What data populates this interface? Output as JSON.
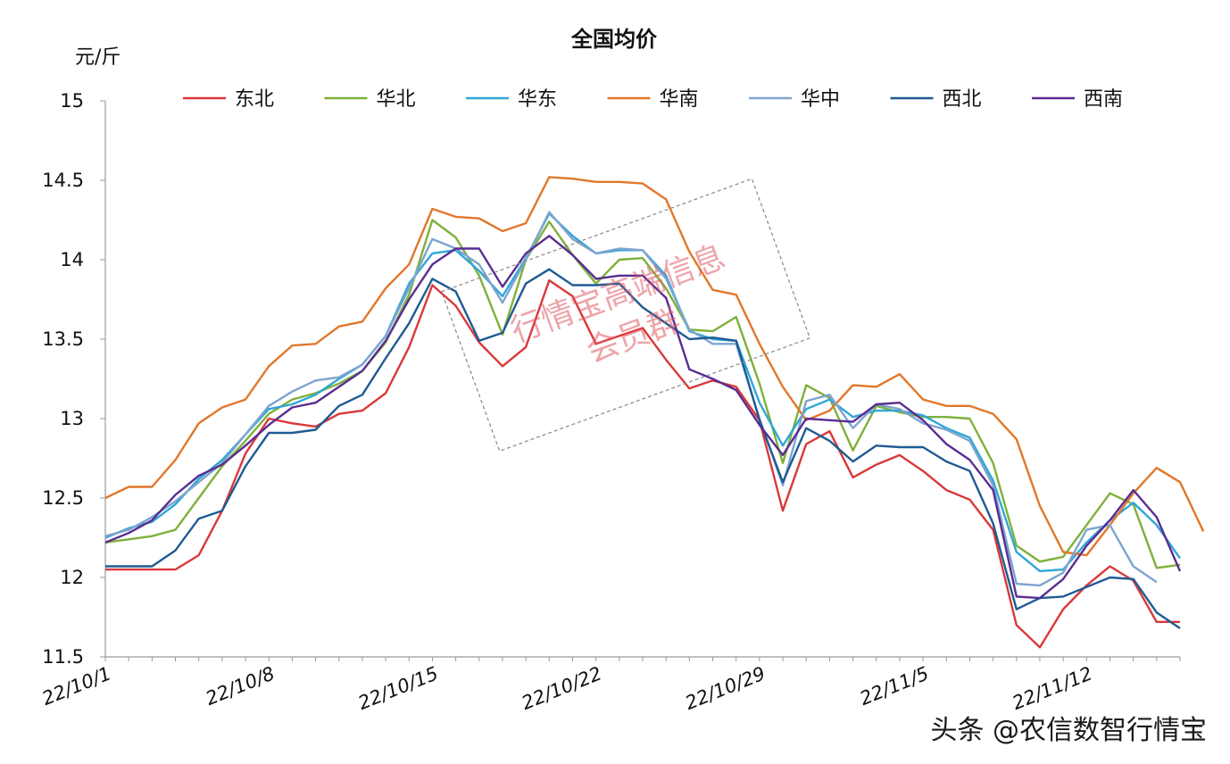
{
  "chart_data": {
    "type": "line",
    "title": "全国均价",
    "ylabel": "元/斤",
    "xlabel": "",
    "ylim": [
      11.5,
      15
    ],
    "yticks": [
      "11.5",
      "12",
      "12.5",
      "13",
      "13.5",
      "14",
      "14.5",
      "15"
    ],
    "xtick_labels": [
      "22/10/1",
      "22/10/8",
      "22/10/15",
      "22/10/22",
      "22/10/29",
      "22/11/5",
      "22/11/12"
    ],
    "x_start": "22/10/1",
    "x_interval_days": 1,
    "grid": false,
    "legend_position": "top",
    "series": [
      {
        "name": "东北",
        "color": "#d9383a",
        "values": [
          12.05,
          12.05,
          12.05,
          12.05,
          12.14,
          12.42,
          12.78,
          13.0,
          12.97,
          12.95,
          13.03,
          13.05,
          13.16,
          13.45,
          13.84,
          13.71,
          13.48,
          13.33,
          13.45,
          13.87,
          13.77,
          13.47,
          13.52,
          13.57,
          13.37,
          13.19,
          13.24,
          13.2,
          12.99,
          12.42,
          12.84,
          12.92,
          12.63,
          12.71,
          12.77,
          12.67,
          12.55,
          12.49,
          12.3,
          11.7,
          11.56,
          11.8,
          11.95,
          12.07,
          11.98,
          11.72,
          11.72
        ]
      },
      {
        "name": "华北",
        "color": "#7fb03a",
        "values": [
          12.22,
          12.24,
          12.26,
          12.3,
          12.5,
          12.7,
          12.86,
          13.03,
          13.12,
          13.16,
          13.22,
          13.3,
          13.48,
          13.78,
          14.25,
          14.14,
          13.9,
          13.53,
          14.0,
          14.24,
          14.03,
          13.85,
          14.0,
          14.01,
          13.82,
          13.56,
          13.55,
          13.64,
          13.22,
          12.72,
          13.21,
          13.13,
          12.8,
          13.08,
          13.04,
          13.01,
          13.01,
          13.0,
          12.72,
          12.2,
          12.1,
          12.13,
          12.33,
          12.53,
          12.46,
          12.06,
          12.08
        ]
      },
      {
        "name": "华东",
        "color": "#2fa7d6",
        "values": [
          12.25,
          12.31,
          12.35,
          12.46,
          12.62,
          12.74,
          12.9,
          13.06,
          13.09,
          13.15,
          13.25,
          13.34,
          13.52,
          13.85,
          14.04,
          14.06,
          13.93,
          13.77,
          14.01,
          14.29,
          14.15,
          14.04,
          14.06,
          14.06,
          13.9,
          13.55,
          13.5,
          13.49,
          13.1,
          12.83,
          13.06,
          13.12,
          13.01,
          13.05,
          13.05,
          13.02,
          12.94,
          12.88,
          12.61,
          12.16,
          12.04,
          12.05,
          12.22,
          12.36,
          12.47,
          12.33,
          12.12
        ]
      },
      {
        "name": "华南",
        "color": "#e2772a",
        "values": [
          12.5,
          12.57,
          12.57,
          12.74,
          12.97,
          13.07,
          13.12,
          13.33,
          13.46,
          13.47,
          13.58,
          13.61,
          13.82,
          13.97,
          14.32,
          14.27,
          14.26,
          14.18,
          14.23,
          14.52,
          14.51,
          14.49,
          14.49,
          14.48,
          14.38,
          14.05,
          13.81,
          13.78,
          13.47,
          13.2,
          12.99,
          13.05,
          13.21,
          13.2,
          13.28,
          13.12,
          13.08,
          13.08,
          13.03,
          12.87,
          12.45,
          12.16,
          12.14,
          12.33,
          12.53,
          12.69,
          12.6,
          12.29
        ]
      },
      {
        "name": "华中",
        "color": "#7ea4cf",
        "values": [
          12.26,
          12.3,
          12.38,
          12.48,
          12.6,
          12.72,
          12.9,
          13.08,
          13.17,
          13.24,
          13.26,
          13.34,
          13.52,
          13.82,
          14.13,
          14.07,
          13.97,
          13.73,
          14.0,
          14.3,
          14.13,
          14.04,
          14.07,
          14.06,
          13.88,
          13.56,
          13.47,
          13.47,
          13.0,
          12.58,
          13.11,
          13.15,
          12.94,
          13.09,
          13.06,
          12.97,
          12.93,
          12.86,
          12.58,
          11.96,
          11.95,
          12.03,
          12.3,
          12.33,
          12.07,
          11.97
        ]
      },
      {
        "name": "西北",
        "color": "#1f5b93",
        "values": [
          12.07,
          12.07,
          12.07,
          12.17,
          12.37,
          12.42,
          12.7,
          12.91,
          12.91,
          12.93,
          13.08,
          13.15,
          13.38,
          13.6,
          13.88,
          13.8,
          13.49,
          13.54,
          13.85,
          13.94,
          13.84,
          13.84,
          13.85,
          13.7,
          13.6,
          13.5,
          13.51,
          13.49,
          12.99,
          12.6,
          12.94,
          12.86,
          12.73,
          12.83,
          12.82,
          12.82,
          12.73,
          12.67,
          12.34,
          11.8,
          11.87,
          11.88,
          11.94,
          12.0,
          11.99,
          11.78,
          11.68
        ]
      },
      {
        "name": "西南",
        "color": "#5a2d91",
        "values": [
          12.22,
          12.28,
          12.36,
          12.52,
          12.64,
          12.71,
          12.83,
          12.96,
          13.07,
          13.1,
          13.2,
          13.3,
          13.49,
          13.75,
          13.97,
          14.07,
          14.07,
          13.83,
          14.04,
          14.15,
          14.03,
          13.88,
          13.9,
          13.9,
          13.76,
          13.31,
          13.25,
          13.18,
          12.96,
          12.77,
          13.0,
          12.99,
          12.98,
          13.09,
          13.1,
          12.99,
          12.84,
          12.74,
          12.55,
          11.88,
          11.87,
          11.99,
          12.2,
          12.36,
          12.55,
          12.38,
          12.04
        ]
      }
    ]
  },
  "watermark": {
    "line1": "行情宝高端信息",
    "line2": "会员群",
    "color": "#e05a64"
  },
  "brand": {
    "text": "头条 @农信数智行情宝"
  }
}
